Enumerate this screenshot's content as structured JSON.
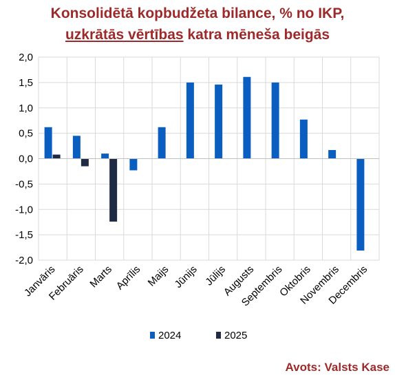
{
  "title": {
    "line1": "Konsolidētā kopbudžeta bilance, % no IKP,",
    "line2_underlined": "uzkrātās vērtības",
    "line2_rest": " katra mēneša beigās"
  },
  "source": "Avots: Valsts Kase",
  "colors": {
    "s2024": "#0a5ec0",
    "s2025": "#1f2a44",
    "grid": "#d9d9d9"
  },
  "chart_data": {
    "type": "bar",
    "title": "Konsolidētā kopbudžeta bilance, % no IKP, uzkrātās vērtības katra mēneša beigās",
    "categories": [
      "Janvāris",
      "Februāris",
      "Marts",
      "Aprīlis",
      "Maijs",
      "Jūnijs",
      "Jūlijs",
      "Augusts",
      "Septembris",
      "Oktobris",
      "Novembris",
      "Decembris"
    ],
    "series": [
      {
        "name": "2024",
        "values": [
          0.62,
          0.45,
          0.1,
          -0.23,
          0.62,
          1.5,
          1.46,
          1.61,
          1.5,
          0.77,
          0.17,
          -1.81
        ]
      },
      {
        "name": "2025",
        "values": [
          0.08,
          -0.15,
          -1.24,
          null,
          null,
          null,
          null,
          null,
          null,
          null,
          null,
          null
        ]
      }
    ],
    "ylim": [
      -2.0,
      2.0
    ],
    "yticks": [
      "2,0",
      "1,5",
      "1,0",
      "0,5",
      "0,0",
      "-0,5",
      "-1,0",
      "-1,5",
      "-2,0"
    ],
    "grid": true,
    "legend": "bottom-center"
  }
}
